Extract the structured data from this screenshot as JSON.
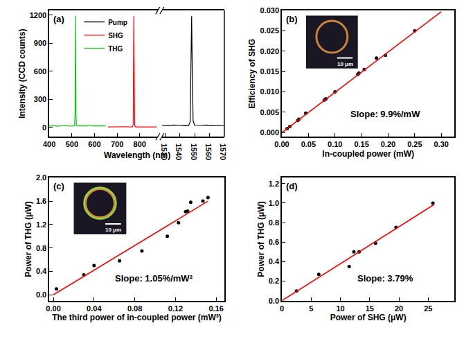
{
  "chart_data": [
    {
      "type": "line",
      "title": "(a)",
      "x_label": "Wavelength (nm)",
      "y_label": "Intensity (CCD counts)",
      "xlim": [
        400,
        880
      ],
      "xticks": [
        400,
        500,
        600,
        700,
        800
      ],
      "x2lim": [
        1528,
        1570
      ],
      "x2ticks": [
        1530,
        1540,
        1550,
        1560,
        1570
      ],
      "ylim": [
        -100,
        1250
      ],
      "yticks": [
        0,
        300,
        600,
        900,
        1200
      ],
      "grid": false,
      "legend": "top",
      "series": [
        {
          "name": "Pump",
          "color": "#000000",
          "axis": "x2",
          "x": [
            1528,
            1532,
            1536,
            1540,
            1544,
            1546,
            1547,
            1547.5,
            1548,
            1548.5,
            1549,
            1550,
            1554,
            1558,
            1562,
            1566,
            1570
          ],
          "values": [
            22,
            18,
            25,
            20,
            23,
            19,
            60,
            500,
            1190,
            520,
            70,
            22,
            20,
            24,
            18,
            22,
            20
          ]
        },
        {
          "name": "SHG",
          "color": "#ff0000",
          "x": [
            660,
            680,
            700,
            720,
            740,
            760,
            768,
            771,
            772,
            773,
            774,
            775,
            776,
            778,
            782,
            800,
            820,
            840,
            860,
            875
          ],
          "values": [
            4,
            6,
            3,
            5,
            7,
            4,
            6,
            30,
            250,
            800,
            1190,
            780,
            240,
            20,
            5,
            6,
            4,
            7,
            5,
            4
          ]
        },
        {
          "name": "THG",
          "color": "#00cc00",
          "x": [
            400,
            420,
            440,
            460,
            480,
            500,
            508,
            512,
            514,
            515,
            516,
            517,
            518,
            520,
            524,
            540,
            560,
            580,
            600,
            620,
            640,
            650
          ],
          "values": [
            14,
            18,
            12,
            20,
            15,
            17,
            13,
            20,
            150,
            700,
            1190,
            650,
            140,
            20,
            15,
            18,
            14,
            20,
            13,
            17,
            15,
            14
          ]
        }
      ]
    },
    {
      "type": "scatter",
      "title": "(b)",
      "x_label": "In-coupled power (mW)",
      "y_label": "Efficiency of SHG",
      "xlim": [
        0,
        0.325
      ],
      "xticks": [
        {
          "value": 0,
          "label": "0.00"
        },
        0.05,
        {
          "value": 0.1,
          "label": "0.10"
        },
        0.15,
        {
          "value": 0.2,
          "label": "0.20"
        },
        0.25,
        {
          "value": 0.3,
          "label": "0.30"
        }
      ],
      "ylim": [
        -0.001,
        0.03
      ],
      "yticks": [
        {
          "value": 0,
          "label": "0.000"
        },
        {
          "value": 0.005,
          "label": "0.005"
        },
        {
          "value": 0.01,
          "label": "0.010"
        },
        {
          "value": 0.015,
          "label": "0.015"
        },
        {
          "value": 0.02,
          "label": "0.020"
        },
        {
          "value": 0.025,
          "label": "0.025"
        },
        {
          "value": 0.03,
          "label": "0.030"
        }
      ],
      "grid": false,
      "annotations": [
        "Slope: 9.9%/mW"
      ],
      "inset": {
        "scale_bar": "10 μm"
      },
      "series": [
        {
          "type": "scatter",
          "marker": "circle",
          "color": "#000000",
          "x": [
            0.01,
            0.015,
            0.03,
            0.032,
            0.045,
            0.08,
            0.083,
            0.1,
            0.143,
            0.145,
            0.155,
            0.178,
            0.195,
            0.25
          ],
          "values": [
            0.001,
            0.0015,
            0.003,
            0.0033,
            0.0048,
            0.008,
            0.0083,
            0.01,
            0.0143,
            0.0146,
            0.0155,
            0.0183,
            0.019,
            0.025
          ]
        },
        {
          "type": "line",
          "color": "#ff0000",
          "x": [
            0,
            0.3
          ],
          "values": [
            0,
            0.0297
          ]
        }
      ]
    },
    {
      "type": "scatter",
      "title": "(c)",
      "x_label": "The third power of in-coupled power (mW³)",
      "y_label": "Power of THG (μW)",
      "xlim": [
        -0.004,
        0.168
      ],
      "xticks": [
        {
          "value": 0,
          "label": "0.00"
        },
        0.04,
        0.08,
        0.12,
        0.16
      ],
      "ylim": [
        -0.1,
        2.0
      ],
      "yticks": [
        {
          "value": 0,
          "label": "0.0"
        },
        0.4,
        0.8,
        1.2,
        1.6,
        {
          "value": 2,
          "label": "2.0"
        }
      ],
      "grid": false,
      "annotations": [
        "Slope: 1.05%/mW²"
      ],
      "inset": {
        "scale_bar": "10 μm"
      },
      "series": [
        {
          "type": "scatter",
          "marker": "circle",
          "color": "#000000",
          "x": [
            0.003,
            0.03,
            0.04,
            0.065,
            0.087,
            0.112,
            0.123,
            0.13,
            0.132,
            0.135,
            0.147,
            0.152
          ],
          "values": [
            0.1,
            0.34,
            0.5,
            0.58,
            0.75,
            1.0,
            1.23,
            1.42,
            1.43,
            1.58,
            1.6,
            1.66
          ]
        },
        {
          "type": "line",
          "color": "#ff0000",
          "x": [
            0,
            0.152
          ],
          "values": [
            0,
            1.6
          ]
        }
      ]
    },
    {
      "type": "scatter",
      "title": "(d)",
      "x_label": "Power of SHG (μW)",
      "y_label": "Power of THG (μW)",
      "xlim": [
        0,
        29.5
      ],
      "xticks": [
        0,
        5,
        10,
        15,
        20,
        25
      ],
      "ylim": [
        0,
        1.26
      ],
      "yticks": [
        {
          "value": 0,
          "label": "0.0"
        },
        0.2,
        0.4,
        0.6,
        0.8,
        {
          "value": 1,
          "label": "1.0"
        },
        1.2
      ],
      "grid": false,
      "annotations": [
        "Slope: 3.79%"
      ],
      "series": [
        {
          "type": "scatter",
          "marker": "circle",
          "color": "#000000",
          "x": [
            2.5,
            6.3,
            11.5,
            12.3,
            13.2,
            16,
            19.5,
            25.8
          ],
          "values": [
            0.1,
            0.27,
            0.35,
            0.5,
            0.5,
            0.59,
            0.75,
            1.0
          ]
        },
        {
          "type": "line",
          "color": "#ff0000",
          "x": [
            0,
            26
          ],
          "values": [
            0,
            0.985
          ]
        }
      ]
    }
  ]
}
